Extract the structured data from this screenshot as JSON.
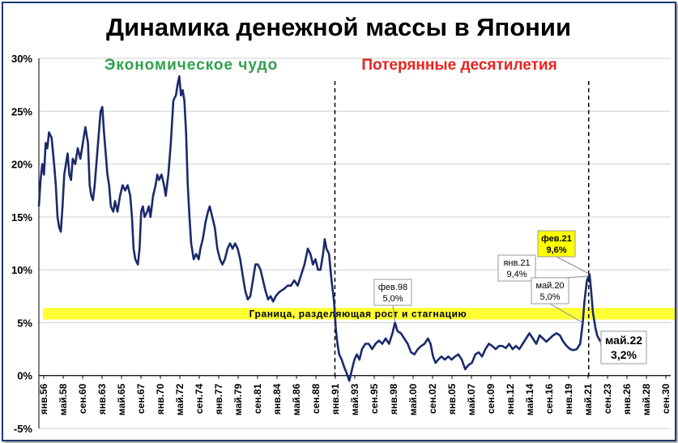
{
  "chart_data": {
    "type": "line",
    "title": "Динамика денежной массы в Японии",
    "ylim": [
      -5,
      30
    ],
    "y_ticks": [
      "30%",
      "25%",
      "20%",
      "15%",
      "10%",
      "5%",
      "0%",
      "-5%"
    ],
    "y_tick_values": [
      30,
      25,
      20,
      15,
      10,
      5,
      0,
      -5
    ],
    "x_range": [
      1956.0,
      2030.7
    ],
    "x_tick_labels": [
      "янв.56",
      "май.58",
      "сен.60",
      "янв.63",
      "май.65",
      "сен.67",
      "янв.70",
      "май.72",
      "сен.74",
      "янв.77",
      "май.79",
      "сен.81",
      "янв.84",
      "май.86",
      "сен.88",
      "янв.91",
      "май.93",
      "сен.95",
      "янв.98",
      "май.00",
      "сен.02",
      "янв.05",
      "май.07",
      "сен.09",
      "янв.12",
      "май.14",
      "сен.16",
      "янв.19",
      "май.21",
      "сен.23",
      "янв.26",
      "май.28",
      "сен.30"
    ],
    "eras": [
      {
        "label": "Экономическое чудо",
        "color": "#2ea04c"
      },
      {
        "label": "Потерянные десятилетия",
        "color": "#e8231f"
      }
    ],
    "dividers": [
      1991.0,
      2021.0
    ],
    "band": {
      "from": 5.3,
      "to": 6.4,
      "label": "Граница, разделяющая рост и стагнацию",
      "color": "#ffff33"
    },
    "series_color": "#1a2a6c",
    "points": [
      [
        1956.0,
        16.0
      ],
      [
        1956.2,
        18.5
      ],
      [
        1956.4,
        20.0
      ],
      [
        1956.6,
        19.0
      ],
      [
        1956.8,
        22.0
      ],
      [
        1957.0,
        21.5
      ],
      [
        1957.2,
        23.0
      ],
      [
        1957.5,
        22.5
      ],
      [
        1957.8,
        20.0
      ],
      [
        1958.0,
        18.0
      ],
      [
        1958.2,
        15.0
      ],
      [
        1958.4,
        14.0
      ],
      [
        1958.6,
        13.6
      ],
      [
        1958.8,
        16.0
      ],
      [
        1959.0,
        19.0
      ],
      [
        1959.2,
        20.0
      ],
      [
        1959.4,
        21.0
      ],
      [
        1959.6,
        19.0
      ],
      [
        1959.8,
        18.5
      ],
      [
        1960.0,
        20.5
      ],
      [
        1960.3,
        20.0
      ],
      [
        1960.6,
        21.5
      ],
      [
        1960.9,
        20.5
      ],
      [
        1961.2,
        22.0
      ],
      [
        1961.5,
        23.5
      ],
      [
        1961.8,
        22.0
      ],
      [
        1962.0,
        18.0
      ],
      [
        1962.2,
        17.0
      ],
      [
        1962.4,
        16.6
      ],
      [
        1962.6,
        18.0
      ],
      [
        1962.9,
        21.0
      ],
      [
        1963.1,
        23.0
      ],
      [
        1963.3,
        25.0
      ],
      [
        1963.5,
        25.4
      ],
      [
        1963.7,
        23.0
      ],
      [
        1963.9,
        21.0
      ],
      [
        1964.1,
        19.0
      ],
      [
        1964.3,
        18.0
      ],
      [
        1964.5,
        16.0
      ],
      [
        1964.8,
        15.5
      ],
      [
        1965.0,
        16.5
      ],
      [
        1965.3,
        15.5
      ],
      [
        1965.6,
        17.0
      ],
      [
        1965.9,
        18.0
      ],
      [
        1966.2,
        17.5
      ],
      [
        1966.5,
        18.0
      ],
      [
        1966.8,
        17.0
      ],
      [
        1967.0,
        15.0
      ],
      [
        1967.2,
        12.0
      ],
      [
        1967.4,
        11.0
      ],
      [
        1967.7,
        10.5
      ],
      [
        1967.9,
        12.0
      ],
      [
        1968.1,
        15.5
      ],
      [
        1968.3,
        16.0
      ],
      [
        1968.5,
        15.0
      ],
      [
        1968.8,
        15.5
      ],
      [
        1969.0,
        16.0
      ],
      [
        1969.2,
        15.0
      ],
      [
        1969.5,
        17.0
      ],
      [
        1969.8,
        18.0
      ],
      [
        1970.0,
        19.0
      ],
      [
        1970.2,
        18.5
      ],
      [
        1970.5,
        19.0
      ],
      [
        1970.8,
        18.0
      ],
      [
        1971.0,
        17.0
      ],
      [
        1971.3,
        19.0
      ],
      [
        1971.6,
        22.0
      ],
      [
        1971.9,
        26.0
      ],
      [
        1972.2,
        26.5
      ],
      [
        1972.4,
        27.5
      ],
      [
        1972.6,
        28.3
      ],
      [
        1972.8,
        26.5
      ],
      [
        1973.0,
        27.0
      ],
      [
        1973.2,
        26.0
      ],
      [
        1973.4,
        23.0
      ],
      [
        1973.6,
        18.0
      ],
      [
        1973.8,
        15.0
      ],
      [
        1974.0,
        12.5
      ],
      [
        1974.3,
        11.0
      ],
      [
        1974.6,
        11.5
      ],
      [
        1974.9,
        11.0
      ],
      [
        1975.1,
        12.0
      ],
      [
        1975.4,
        13.0
      ],
      [
        1975.7,
        14.5
      ],
      [
        1976.0,
        15.5
      ],
      [
        1976.2,
        16.0
      ],
      [
        1976.5,
        15.0
      ],
      [
        1976.8,
        14.0
      ],
      [
        1977.1,
        12.0
      ],
      [
        1977.4,
        11.0
      ],
      [
        1977.7,
        10.5
      ],
      [
        1978.0,
        11.0
      ],
      [
        1978.3,
        12.0
      ],
      [
        1978.6,
        12.5
      ],
      [
        1978.9,
        12.0
      ],
      [
        1979.2,
        12.5
      ],
      [
        1979.5,
        12.0
      ],
      [
        1979.8,
        11.0
      ],
      [
        1980.1,
        9.5
      ],
      [
        1980.4,
        8.0
      ],
      [
        1980.7,
        7.2
      ],
      [
        1981.0,
        7.5
      ],
      [
        1981.3,
        9.0
      ],
      [
        1981.6,
        10.5
      ],
      [
        1981.9,
        10.5
      ],
      [
        1982.2,
        10.0
      ],
      [
        1982.5,
        9.0
      ],
      [
        1982.8,
        8.0
      ],
      [
        1983.1,
        7.2
      ],
      [
        1983.4,
        7.5
      ],
      [
        1983.7,
        7.0
      ],
      [
        1984.0,
        7.5
      ],
      [
        1984.3,
        7.8
      ],
      [
        1984.6,
        8.0
      ],
      [
        1985.0,
        8.2
      ],
      [
        1985.4,
        8.5
      ],
      [
        1985.8,
        8.5
      ],
      [
        1986.2,
        9.0
      ],
      [
        1986.6,
        8.5
      ],
      [
        1987.0,
        9.5
      ],
      [
        1987.4,
        10.5
      ],
      [
        1987.8,
        12.0
      ],
      [
        1988.1,
        11.5
      ],
      [
        1988.4,
        10.5
      ],
      [
        1988.7,
        11.0
      ],
      [
        1989.0,
        10.0
      ],
      [
        1989.3,
        10.0
      ],
      [
        1989.6,
        11.5
      ],
      [
        1989.8,
        12.9
      ],
      [
        1990.0,
        12.0
      ],
      [
        1990.3,
        11.5
      ],
      [
        1990.6,
        9.0
      ],
      [
        1990.9,
        7.0
      ],
      [
        1991.1,
        4.5
      ],
      [
        1991.3,
        3.0
      ],
      [
        1991.5,
        2.0
      ],
      [
        1991.8,
        1.5
      ],
      [
        1992.1,
        0.8
      ],
      [
        1992.4,
        0.2
      ],
      [
        1992.7,
        -0.5
      ],
      [
        1993.0,
        0.5
      ],
      [
        1993.3,
        1.5
      ],
      [
        1993.6,
        2.0
      ],
      [
        1993.9,
        1.5
      ],
      [
        1994.2,
        2.5
      ],
      [
        1994.6,
        3.0
      ],
      [
        1995.0,
        3.0
      ],
      [
        1995.4,
        2.5
      ],
      [
        1995.8,
        3.0
      ],
      [
        1996.2,
        3.3
      ],
      [
        1996.6,
        3.0
      ],
      [
        1997.0,
        3.5
      ],
      [
        1997.4,
        3.0
      ],
      [
        1997.8,
        4.0
      ],
      [
        1998.1,
        5.0
      ],
      [
        1998.4,
        4.2
      ],
      [
        1998.8,
        4.0
      ],
      [
        1999.2,
        3.5
      ],
      [
        1999.6,
        3.0
      ],
      [
        2000.0,
        2.2
      ],
      [
        2000.4,
        2.0
      ],
      [
        2000.8,
        2.5
      ],
      [
        2001.2,
        2.8
      ],
      [
        2001.6,
        3.0
      ],
      [
        2002.0,
        3.5
      ],
      [
        2002.3,
        3.0
      ],
      [
        2002.6,
        1.8
      ],
      [
        2002.9,
        1.2
      ],
      [
        2003.2,
        1.5
      ],
      [
        2003.6,
        1.8
      ],
      [
        2004.0,
        1.5
      ],
      [
        2004.4,
        1.8
      ],
      [
        2004.8,
        1.5
      ],
      [
        2005.2,
        1.8
      ],
      [
        2005.6,
        2.0
      ],
      [
        2006.0,
        1.5
      ],
      [
        2006.4,
        0.6
      ],
      [
        2006.8,
        1.0
      ],
      [
        2007.2,
        1.2
      ],
      [
        2007.6,
        2.0
      ],
      [
        2008.0,
        2.2
      ],
      [
        2008.4,
        1.8
      ],
      [
        2008.8,
        2.5
      ],
      [
        2009.2,
        3.0
      ],
      [
        2009.6,
        2.8
      ],
      [
        2010.0,
        2.5
      ],
      [
        2010.4,
        2.8
      ],
      [
        2010.8,
        2.8
      ],
      [
        2011.2,
        2.6
      ],
      [
        2011.6,
        3.0
      ],
      [
        2012.0,
        2.5
      ],
      [
        2012.4,
        2.8
      ],
      [
        2012.8,
        2.5
      ],
      [
        2013.2,
        3.0
      ],
      [
        2013.6,
        3.5
      ],
      [
        2014.0,
        4.0
      ],
      [
        2014.4,
        3.5
      ],
      [
        2014.8,
        3.0
      ],
      [
        2015.2,
        3.8
      ],
      [
        2015.6,
        3.5
      ],
      [
        2016.0,
        3.2
      ],
      [
        2016.4,
        3.5
      ],
      [
        2016.8,
        3.8
      ],
      [
        2017.2,
        4.0
      ],
      [
        2017.6,
        3.8
      ],
      [
        2018.0,
        3.2
      ],
      [
        2018.4,
        2.8
      ],
      [
        2018.8,
        2.5
      ],
      [
        2019.2,
        2.4
      ],
      [
        2019.6,
        2.5
      ],
      [
        2020.0,
        3.0
      ],
      [
        2020.3,
        5.0
      ],
      [
        2020.5,
        7.0
      ],
      [
        2020.8,
        9.0
      ],
      [
        2021.0,
        9.4
      ],
      [
        2021.1,
        9.6
      ],
      [
        2021.3,
        8.0
      ],
      [
        2021.5,
        6.0
      ],
      [
        2021.8,
        4.5
      ],
      [
        2022.0,
        3.8
      ],
      [
        2022.2,
        3.5
      ],
      [
        2022.4,
        3.2
      ]
    ],
    "annotations": [
      {
        "date": "фев.98",
        "value": "5,0%",
        "x": 1998.1,
        "y": 5.0,
        "highlight": false
      },
      {
        "date": "янв.21",
        "value": "9,4%",
        "x": 2021.0,
        "y": 9.4,
        "highlight": false
      },
      {
        "date": "фев.21",
        "value": "9,6%",
        "x": 2021.1,
        "y": 9.6,
        "highlight": true
      },
      {
        "date": "май.20",
        "value": "5,0%",
        "x": 2020.3,
        "y": 5.0,
        "highlight": false
      },
      {
        "date": "май.22",
        "value": "3,2%",
        "x": 2022.4,
        "y": 3.2,
        "highlight": false,
        "large": true
      }
    ]
  }
}
